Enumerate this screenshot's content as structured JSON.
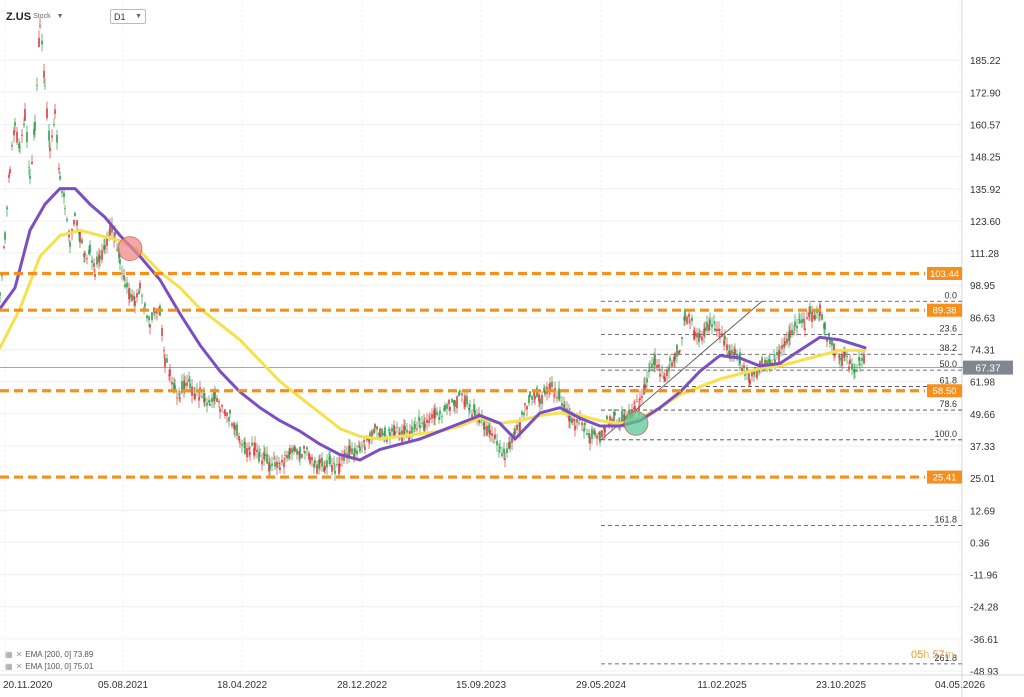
{
  "header": {
    "symbol": "Z.US",
    "symbol_type": "Stock",
    "timeframe": "D1"
  },
  "legend": [
    {
      "label": "EMA [200, 0] 73.89",
      "color": "#f5e14b"
    },
    {
      "label": "EMA [100, 0] 75.01",
      "color": "#7b4fc4"
    }
  ],
  "timer": {
    "hours": "05",
    "h": "h",
    "minutes": "57",
    "m": "m"
  },
  "chart_data": {
    "type": "line",
    "price_type": "candlestick",
    "ylim": [
      -48.93,
      197.55
    ],
    "y_ticks": [
      "185.22",
      "172.90",
      "160.57",
      "148.25",
      "135.92",
      "123.60",
      "111.28",
      "98.95",
      "86.63",
      "74.31",
      "61.98",
      "49.66",
      "37.33",
      "25.01",
      "12.69",
      "0.36",
      "-11.96",
      "-24.28",
      "-36.61",
      "-48.93"
    ],
    "x_ticks": [
      "20.11.2020",
      "05.08.2021",
      "18.04.2022",
      "28.12.2022",
      "15.09.2023",
      "29.05.2024",
      "11.02.2025",
      "23.10.2025",
      "04.05.2026"
    ],
    "current_price": "67.37",
    "price_path": [
      [
        0,
        95
      ],
      [
        5,
        118
      ],
      [
        10,
        145
      ],
      [
        15,
        160
      ],
      [
        20,
        150
      ],
      [
        25,
        165
      ],
      [
        30,
        140
      ],
      [
        35,
        160
      ],
      [
        40,
        200
      ],
      [
        45,
        175
      ],
      [
        50,
        150
      ],
      [
        55,
        165
      ],
      [
        60,
        140
      ],
      [
        65,
        130
      ],
      [
        70,
        115
      ],
      [
        75,
        125
      ],
      [
        80,
        118
      ],
      [
        85,
        110
      ],
      [
        90,
        112
      ],
      [
        95,
        105
      ],
      [
        100,
        110
      ],
      [
        105,
        112
      ],
      [
        110,
        120
      ],
      [
        115,
        118
      ],
      [
        120,
        108
      ],
      [
        125,
        100
      ],
      [
        130,
        95
      ],
      [
        135,
        92
      ],
      [
        140,
        98
      ],
      [
        145,
        90
      ],
      [
        150,
        85
      ],
      [
        155,
        90
      ],
      [
        160,
        88
      ],
      [
        165,
        70
      ],
      [
        170,
        65
      ],
      [
        175,
        58
      ],
      [
        180,
        57
      ],
      [
        185,
        62
      ],
      [
        190,
        60
      ],
      [
        195,
        56
      ],
      [
        200,
        58
      ],
      [
        205,
        55
      ],
      [
        210,
        54
      ],
      [
        215,
        57
      ],
      [
        220,
        52
      ],
      [
        225,
        50
      ],
      [
        230,
        48
      ],
      [
        235,
        45
      ],
      [
        240,
        40
      ],
      [
        245,
        36
      ],
      [
        250,
        35
      ],
      [
        255,
        37
      ],
      [
        260,
        32
      ],
      [
        265,
        34
      ],
      [
        270,
        30
      ],
      [
        275,
        31
      ],
      [
        280,
        29
      ],
      [
        285,
        32
      ],
      [
        290,
        35
      ],
      [
        295,
        37
      ],
      [
        300,
        34
      ],
      [
        305,
        36
      ],
      [
        310,
        33
      ],
      [
        315,
        29
      ],
      [
        320,
        31
      ],
      [
        325,
        30
      ],
      [
        330,
        32
      ],
      [
        335,
        28
      ],
      [
        340,
        30
      ],
      [
        345,
        33
      ],
      [
        350,
        36
      ],
      [
        355,
        35
      ],
      [
        360,
        37
      ],
      [
        365,
        38
      ],
      [
        370,
        40
      ],
      [
        375,
        44
      ],
      [
        380,
        43
      ],
      [
        385,
        42
      ],
      [
        390,
        42
      ],
      [
        395,
        44
      ],
      [
        400,
        41
      ],
      [
        405,
        43
      ],
      [
        410,
        42
      ],
      [
        415,
        45
      ],
      [
        420,
        46
      ],
      [
        425,
        45
      ],
      [
        430,
        47
      ],
      [
        435,
        50
      ],
      [
        440,
        49
      ],
      [
        445,
        52
      ],
      [
        450,
        54
      ],
      [
        455,
        53
      ],
      [
        460,
        57
      ],
      [
        465,
        55
      ],
      [
        470,
        52
      ],
      [
        475,
        50
      ],
      [
        480,
        48
      ],
      [
        485,
        44
      ],
      [
        490,
        42
      ],
      [
        495,
        40
      ],
      [
        500,
        36
      ],
      [
        505,
        34
      ],
      [
        510,
        38
      ],
      [
        515,
        42
      ],
      [
        520,
        46
      ],
      [
        525,
        52
      ],
      [
        530,
        56
      ],
      [
        535,
        58
      ],
      [
        540,
        55
      ],
      [
        545,
        57
      ],
      [
        550,
        60
      ],
      [
        555,
        58
      ],
      [
        560,
        56
      ],
      [
        565,
        52
      ],
      [
        570,
        48
      ],
      [
        575,
        45
      ],
      [
        580,
        47
      ],
      [
        585,
        44
      ],
      [
        590,
        41
      ],
      [
        595,
        43
      ],
      [
        600,
        40
      ],
      [
        605,
        45
      ],
      [
        610,
        47
      ],
      [
        615,
        48
      ],
      [
        620,
        47
      ],
      [
        625,
        49
      ],
      [
        630,
        48
      ],
      [
        635,
        52
      ],
      [
        640,
        54
      ],
      [
        645,
        60
      ],
      [
        650,
        68
      ],
      [
        655,
        70
      ],
      [
        660,
        66
      ],
      [
        665,
        63
      ],
      [
        670,
        68
      ],
      [
        675,
        72
      ],
      [
        680,
        75
      ],
      [
        685,
        87
      ],
      [
        690,
        86
      ],
      [
        695,
        80
      ],
      [
        700,
        78
      ],
      [
        705,
        82
      ],
      [
        710,
        85
      ],
      [
        715,
        83
      ],
      [
        720,
        80
      ],
      [
        725,
        77
      ],
      [
        730,
        72
      ],
      [
        735,
        74
      ],
      [
        740,
        70
      ],
      [
        745,
        66
      ],
      [
        750,
        63
      ],
      [
        755,
        65
      ],
      [
        760,
        68
      ],
      [
        765,
        70
      ],
      [
        770,
        69
      ],
      [
        775,
        71
      ],
      [
        780,
        73
      ],
      [
        785,
        76
      ],
      [
        790,
        80
      ],
      [
        795,
        83
      ],
      [
        800,
        86
      ],
      [
        805,
        84
      ],
      [
        810,
        88
      ],
      [
        815,
        86
      ],
      [
        820,
        90
      ],
      [
        825,
        82
      ],
      [
        830,
        78
      ],
      [
        835,
        74
      ],
      [
        840,
        70
      ],
      [
        845,
        72
      ],
      [
        850,
        69
      ],
      [
        855,
        66
      ],
      [
        860,
        70
      ],
      [
        865,
        71
      ]
    ],
    "series": [
      {
        "name": "EMA [200, 0] 73.89",
        "color": "#f5e14b",
        "values": [
          [
            0,
            75
          ],
          [
            20,
            90
          ],
          [
            40,
            110
          ],
          [
            60,
            118
          ],
          [
            80,
            120
          ],
          [
            100,
            118
          ],
          [
            120,
            116
          ],
          [
            140,
            112
          ],
          [
            160,
            104
          ],
          [
            180,
            98
          ],
          [
            200,
            90
          ],
          [
            220,
            84
          ],
          [
            240,
            78
          ],
          [
            260,
            70
          ],
          [
            280,
            62
          ],
          [
            300,
            56
          ],
          [
            320,
            50
          ],
          [
            340,
            44
          ],
          [
            360,
            41
          ],
          [
            380,
            40
          ],
          [
            400,
            41
          ],
          [
            420,
            42
          ],
          [
            440,
            43
          ],
          [
            460,
            45
          ],
          [
            480,
            48
          ],
          [
            500,
            46
          ],
          [
            520,
            47
          ],
          [
            540,
            49
          ],
          [
            560,
            50
          ],
          [
            580,
            49
          ],
          [
            600,
            47
          ],
          [
            620,
            46
          ],
          [
            640,
            48
          ],
          [
            660,
            52
          ],
          [
            680,
            57
          ],
          [
            700,
            60
          ],
          [
            720,
            63
          ],
          [
            740,
            65
          ],
          [
            760,
            67
          ],
          [
            780,
            68
          ],
          [
            800,
            70
          ],
          [
            820,
            72
          ],
          [
            840,
            74
          ],
          [
            865,
            74
          ]
        ]
      },
      {
        "name": "EMA [100, 0] 75.01",
        "color": "#7b4fc4",
        "values": [
          [
            0,
            90
          ],
          [
            15,
            98
          ],
          [
            30,
            120
          ],
          [
            45,
            130
          ],
          [
            60,
            136
          ],
          [
            75,
            136
          ],
          [
            90,
            130
          ],
          [
            105,
            125
          ],
          [
            120,
            118
          ],
          [
            140,
            110
          ],
          [
            160,
            101
          ],
          [
            180,
            88
          ],
          [
            200,
            76
          ],
          [
            220,
            66
          ],
          [
            240,
            58
          ],
          [
            260,
            52
          ],
          [
            280,
            47
          ],
          [
            300,
            43
          ],
          [
            320,
            38
          ],
          [
            340,
            34
          ],
          [
            360,
            32
          ],
          [
            380,
            36
          ],
          [
            400,
            38
          ],
          [
            420,
            40
          ],
          [
            440,
            43
          ],
          [
            460,
            46
          ],
          [
            480,
            49
          ],
          [
            500,
            46
          ],
          [
            515,
            40
          ],
          [
            525,
            44
          ],
          [
            540,
            50
          ],
          [
            560,
            52
          ],
          [
            580,
            48
          ],
          [
            600,
            45
          ],
          [
            620,
            45
          ],
          [
            640,
            47
          ],
          [
            660,
            52
          ],
          [
            680,
            58
          ],
          [
            700,
            66
          ],
          [
            720,
            72
          ],
          [
            740,
            71
          ],
          [
            760,
            68
          ],
          [
            780,
            69
          ],
          [
            800,
            74
          ],
          [
            820,
            79
          ],
          [
            840,
            78
          ],
          [
            865,
            75
          ]
        ]
      }
    ],
    "horizontal_levels": [
      {
        "value": 103.44,
        "label": "103.44",
        "color": "#f5901e"
      },
      {
        "value": 89.38,
        "label": "89.38",
        "color": "#f5901e"
      },
      {
        "value": 58.5,
        "label": "58.50",
        "color": "#f5901e"
      },
      {
        "value": 25.41,
        "label": "25.41",
        "color": "#f5901e"
      }
    ],
    "fibonacci": [
      {
        "ratio": "0.0",
        "value": 92.8
      },
      {
        "ratio": "23.6",
        "value": 80.1
      },
      {
        "ratio": "38.2",
        "value": 72.5
      },
      {
        "ratio": "50.0",
        "value": 66.4
      },
      {
        "ratio": "61.8",
        "value": 60.1
      },
      {
        "ratio": "78.6",
        "value": 51.1
      },
      {
        "ratio": "100.0",
        "value": 39.7
      },
      {
        "ratio": "161.8",
        "value": 6.9
      },
      {
        "ratio": "261.8",
        "value": -46.2
      }
    ],
    "markers": [
      {
        "x_index": 130,
        "value": 113,
        "color": "#ef8a8a"
      },
      {
        "x_index": 636,
        "value": 46,
        "color": "#5bc795"
      }
    ]
  }
}
